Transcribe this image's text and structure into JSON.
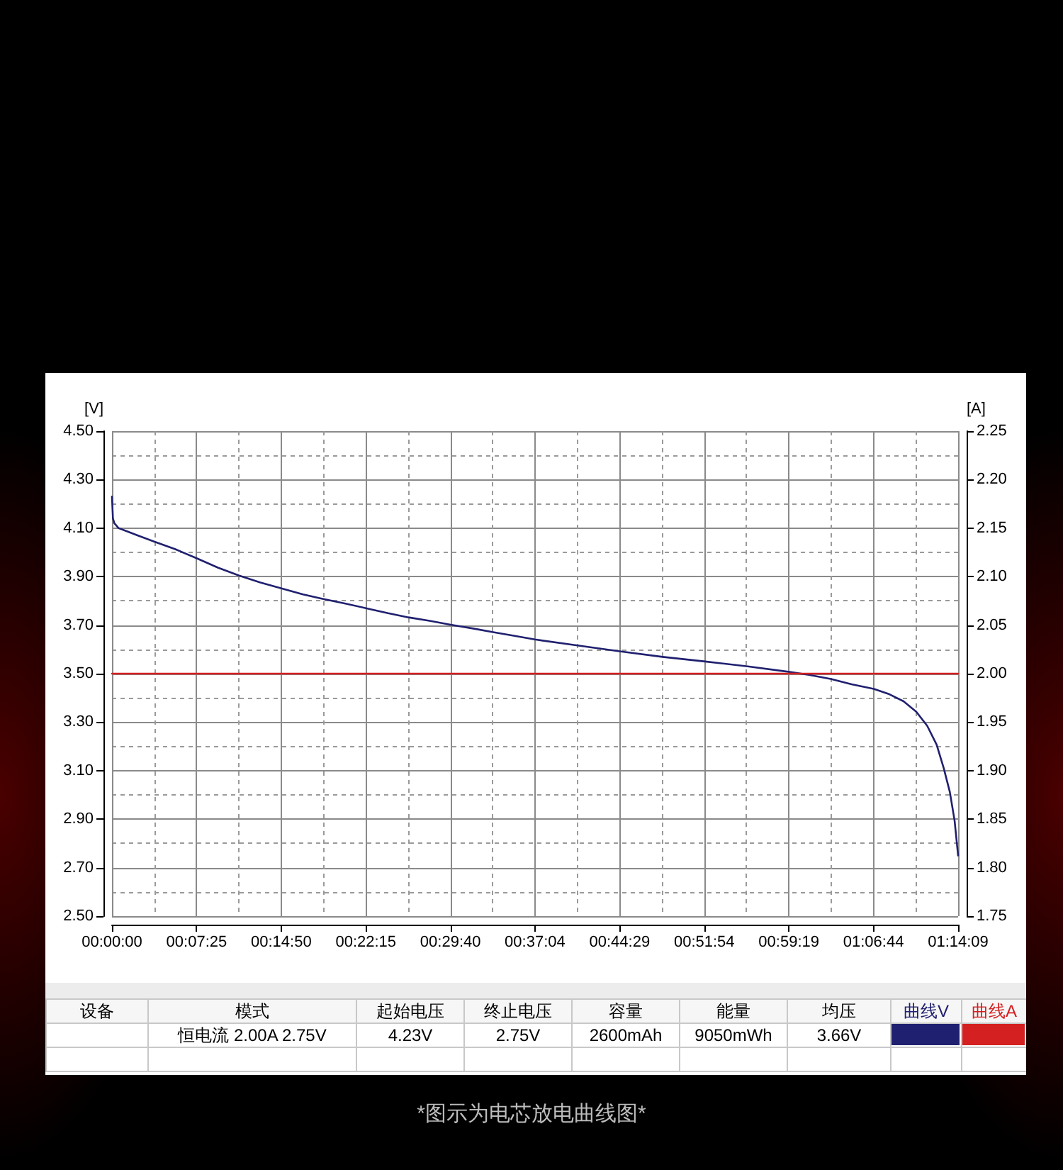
{
  "chart_data": {
    "type": "line",
    "ylabel": "[V]",
    "y2label": "[A]",
    "xlim": [
      0,
      1.2358
    ],
    "xticks": [
      {
        "value": 0,
        "label": "00:00:00"
      },
      {
        "value": 0.1236,
        "label": "00:07:25"
      },
      {
        "value": 0.2472,
        "label": "00:14:50"
      },
      {
        "value": 0.3708,
        "label": "00:22:15"
      },
      {
        "value": 0.4944,
        "label": "00:29:40"
      },
      {
        "value": 0.6178,
        "label": "00:37:04"
      },
      {
        "value": 0.7414,
        "label": "00:44:29"
      },
      {
        "value": 0.865,
        "label": "00:51:54"
      },
      {
        "value": 0.9886,
        "label": "00:59:19"
      },
      {
        "value": 1.1122,
        "label": "01:06:44"
      },
      {
        "value": 1.2358,
        "label": "01:14:09"
      }
    ],
    "ylim": [
      2.5,
      4.5
    ],
    "yticks": [
      {
        "value": 2.5,
        "label": "2.50"
      },
      {
        "value": 2.7,
        "label": "2.70"
      },
      {
        "value": 2.9,
        "label": "2.90"
      },
      {
        "value": 3.1,
        "label": "3.10"
      },
      {
        "value": 3.3,
        "label": "3.30"
      },
      {
        "value": 3.5,
        "label": "3.50"
      },
      {
        "value": 3.7,
        "label": "3.70"
      },
      {
        "value": 3.9,
        "label": "3.90"
      },
      {
        "value": 4.1,
        "label": "4.10"
      },
      {
        "value": 4.3,
        "label": "4.30"
      },
      {
        "value": 4.5,
        "label": "4.50"
      }
    ],
    "y2lim": [
      1.75,
      2.25
    ],
    "y2ticks": [
      1.75,
      {
        "value": 1.8,
        "label": "1.80"
      },
      1.85,
      {
        "value": 1.9,
        "label": "1.90"
      },
      1.95,
      {
        "value": 2,
        "label": "2.00"
      },
      2.05,
      {
        "value": 2.1,
        "label": "2.10"
      },
      2.15,
      {
        "value": 2.2,
        "label": "2.20"
      },
      2.25
    ],
    "series": [
      {
        "name": "曲线V",
        "color": "#202070",
        "x": [
          0,
          0.0014,
          0.0035,
          0.0097,
          0.0373,
          0.0622,
          0.0925,
          0.1236,
          0.1547,
          0.1858,
          0.2168,
          0.2465,
          0.279,
          0.3087,
          0.3411,
          0.3708,
          0.4033,
          0.433,
          0.4654,
          0.4944,
          0.5276,
          0.5566,
          0.5897,
          0.6174,
          0.68,
          0.7414,
          0.8042,
          0.8663,
          0.9284,
          0.9898,
          1.0181,
          1.0498,
          1.0802,
          1.1126,
          1.1354,
          1.1561,
          1.1747,
          1.1906,
          1.2044,
          1.2148,
          1.2237,
          1.2306,
          1.2358
        ],
        "values": [
          4.23,
          4.14,
          4.12,
          4.1,
          4.07,
          4.044,
          4.013,
          3.976,
          3.937,
          3.904,
          3.876,
          3.852,
          3.827,
          3.808,
          3.789,
          3.77,
          3.749,
          3.732,
          3.717,
          3.702,
          3.686,
          3.671,
          3.655,
          3.641,
          3.616,
          3.592,
          3.569,
          3.55,
          3.53,
          3.507,
          3.495,
          3.478,
          3.456,
          3.437,
          3.415,
          3.386,
          3.343,
          3.285,
          3.207,
          3.11,
          3.012,
          2.895,
          2.75
        ]
      },
      {
        "name": "曲线A",
        "color": "#d42020",
        "axis": "y2",
        "x": [
          0,
          1.2358
        ],
        "values": [
          2,
          2
        ]
      }
    ],
    "grid": true,
    "marker": "none",
    "legend": "bottom",
    "annotations": [
      "设备",
      "模式",
      "起始电压",
      "终止电压",
      "容量",
      "能量",
      "均压",
      "恒电流 2.00A 2.75V",
      "4.23V",
      "2.75V",
      "2600mAh",
      "9050mWh",
      "3.66V",
      "*图示为电芯放电曲线图*"
    ]
  }
}
